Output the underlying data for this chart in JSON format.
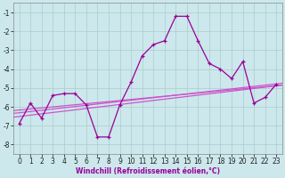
{
  "xlabel": "Windchill (Refroidissement éolien,°C)",
  "x_values": [
    0,
    1,
    2,
    3,
    4,
    5,
    6,
    7,
    8,
    9,
    10,
    11,
    12,
    13,
    14,
    15,
    16,
    17,
    18,
    19,
    20,
    21,
    22,
    23
  ],
  "y_main": [
    -6.9,
    -5.8,
    -6.6,
    -5.4,
    -5.3,
    -5.3,
    -5.9,
    -7.6,
    -7.6,
    -5.9,
    -4.7,
    -3.3,
    -2.7,
    -2.5,
    -1.2,
    -1.2,
    -2.5,
    -3.7,
    -4.0,
    -4.5,
    -3.6,
    -5.8,
    -5.5,
    -4.8
  ],
  "reg_line1": [
    [
      -0.5,
      -6.35
    ],
    [
      23.5,
      -4.75
    ]
  ],
  "reg_line2": [
    [
      -0.5,
      -6.55
    ],
    [
      23.5,
      -4.85
    ]
  ],
  "reg_line3": [
    [
      -0.5,
      -6.2
    ],
    [
      23.5,
      -4.85
    ]
  ],
  "line_color": "#990099",
  "reg_color": "#cc55cc",
  "bg_color": "#cce8ec",
  "grid_color": "#aacccc",
  "ylim": [
    -8.5,
    -0.5
  ],
  "xlim": [
    -0.5,
    23.5
  ],
  "yticks": [
    -8,
    -7,
    -6,
    -5,
    -4,
    -3,
    -2,
    -1
  ],
  "xticks": [
    0,
    1,
    2,
    3,
    4,
    5,
    6,
    7,
    8,
    9,
    10,
    11,
    12,
    13,
    14,
    15,
    16,
    17,
    18,
    19,
    20,
    21,
    22,
    23
  ],
  "tick_fontsize": 5.5,
  "xlabel_fontsize": 5.5
}
